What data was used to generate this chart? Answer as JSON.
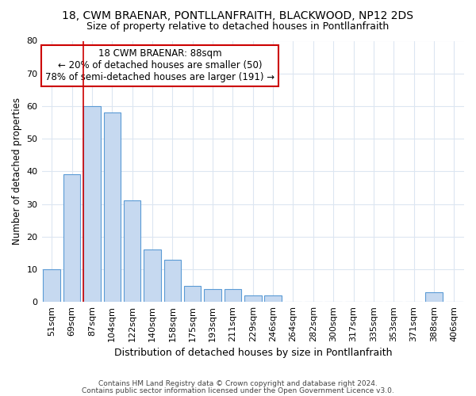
{
  "title": "18, CWM BRAENAR, PONTLLANFRAITH, BLACKWOOD, NP12 2DS",
  "subtitle": "Size of property relative to detached houses in Pontllanfraith",
  "xlabel": "Distribution of detached houses by size in Pontllanfraith",
  "ylabel": "Number of detached properties",
  "bar_labels": [
    "51sqm",
    "69sqm",
    "87sqm",
    "104sqm",
    "122sqm",
    "140sqm",
    "158sqm",
    "175sqm",
    "193sqm",
    "211sqm",
    "229sqm",
    "246sqm",
    "264sqm",
    "282sqm",
    "300sqm",
    "317sqm",
    "335sqm",
    "353sqm",
    "371sqm",
    "388sqm",
    "406sqm"
  ],
  "bar_values": [
    10,
    39,
    60,
    58,
    31,
    16,
    13,
    5,
    4,
    4,
    2,
    2,
    0,
    0,
    0,
    0,
    0,
    0,
    0,
    3,
    0
  ],
  "bar_color": "#c6d9f0",
  "bar_edge_color": "#5b9bd5",
  "highlight_bar_index": 2,
  "highlight_color": "#cc0000",
  "ylim": [
    0,
    80
  ],
  "yticks": [
    0,
    10,
    20,
    30,
    40,
    50,
    60,
    70,
    80
  ],
  "annotation_lines": [
    "18 CWM BRAENAR: 88sqm",
    "← 20% of detached houses are smaller (50)",
    "78% of semi-detached houses are larger (191) →"
  ],
  "footer1": "Contains HM Land Registry data © Crown copyright and database right 2024.",
  "footer2": "Contains public sector information licensed under the Open Government Licence v3.0.",
  "background_color": "#ffffff",
  "grid_color": "#dce6f1"
}
